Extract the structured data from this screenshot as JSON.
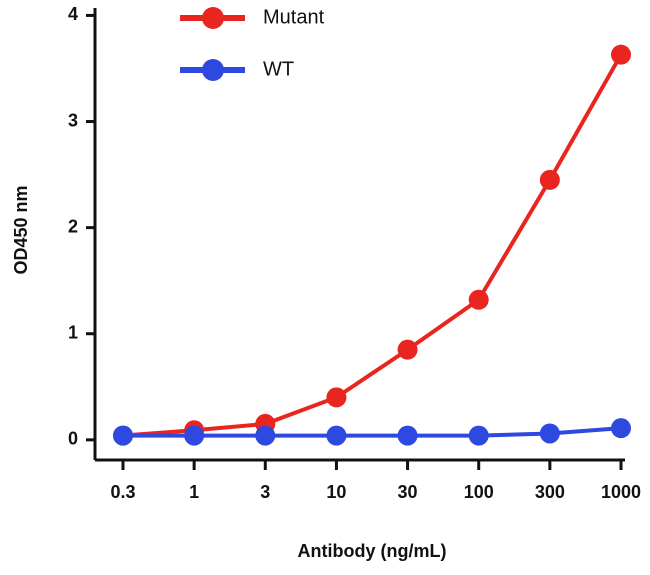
{
  "chart_data": {
    "type": "line",
    "x_label": "Antibody (ng/mL)",
    "y_label": "OD450 nm",
    "categories": [
      "0.3",
      "1",
      "3",
      "10",
      "30",
      "100",
      "300",
      "1000"
    ],
    "series": [
      {
        "name": "Mutant",
        "color": "#e8251f",
        "values": [
          0.04,
          0.09,
          0.15,
          0.4,
          0.85,
          1.32,
          2.45,
          3.63
        ]
      },
      {
        "name": "WT",
        "color": "#2e49e0",
        "values": [
          0.04,
          0.04,
          0.04,
          0.04,
          0.04,
          0.04,
          0.06,
          0.11
        ]
      }
    ],
    "ylim": [
      -0.19,
      4.07
    ],
    "yticks": [
      0,
      1,
      2,
      3,
      4
    ],
    "grid": false,
    "legend": "top"
  }
}
